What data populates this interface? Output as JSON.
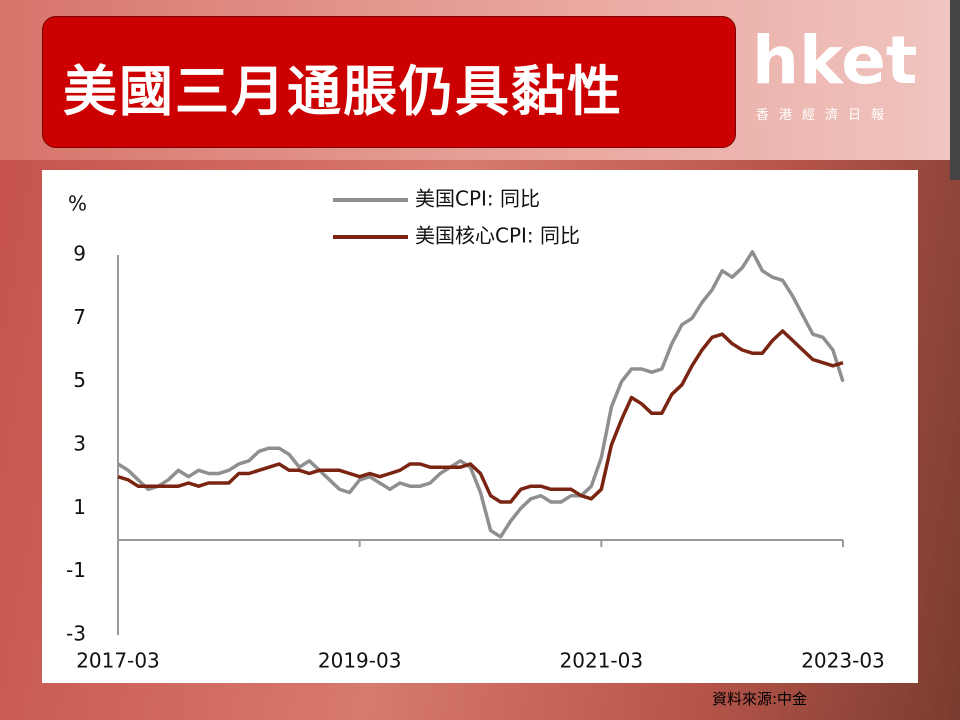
{
  "header": {
    "title": "美國三月通脹仍具黏性"
  },
  "logo": {
    "name": "hket",
    "subtitle": "香港經濟日報"
  },
  "source": "資料來源:中金",
  "chart_data": {
    "type": "line",
    "y_label": "%",
    "categories": [
      "2017-03",
      null,
      null,
      null,
      null,
      null,
      null,
      null,
      null,
      null,
      null,
      null,
      null,
      null,
      null,
      null,
      null,
      null,
      null,
      null,
      null,
      null,
      null,
      null,
      "2019-03",
      null,
      null,
      null,
      null,
      null,
      null,
      null,
      null,
      null,
      null,
      null,
      null,
      null,
      null,
      null,
      null,
      null,
      null,
      null,
      null,
      null,
      null,
      null,
      "2021-03",
      null,
      null,
      null,
      null,
      null,
      null,
      null,
      null,
      null,
      null,
      null,
      null,
      null,
      null,
      null,
      null,
      null,
      null,
      null,
      null,
      null,
      null,
      null,
      "2023-03"
    ],
    "series": [
      {
        "name": "美国CPI: 同比",
        "color": "#8f8f8f",
        "values": [
          2.4,
          2.2,
          1.9,
          1.6,
          1.7,
          1.9,
          2.2,
          2.0,
          2.2,
          2.1,
          2.1,
          2.2,
          2.4,
          2.5,
          2.8,
          2.9,
          2.9,
          2.7,
          2.3,
          2.5,
          2.2,
          1.9,
          1.6,
          1.5,
          1.9,
          2.0,
          1.8,
          1.6,
          1.8,
          1.7,
          1.7,
          1.8,
          2.1,
          2.3,
          2.5,
          2.3,
          1.5,
          0.3,
          0.1,
          0.6,
          1.0,
          1.3,
          1.4,
          1.2,
          1.2,
          1.4,
          1.4,
          1.7,
          2.6,
          4.2,
          5.0,
          5.4,
          5.4,
          5.3,
          5.4,
          6.2,
          6.8,
          7.0,
          7.5,
          7.9,
          8.5,
          8.3,
          8.6,
          9.1,
          8.5,
          8.3,
          8.2,
          7.7,
          7.1,
          6.5,
          6.4,
          6.0,
          5.0
        ]
      },
      {
        "name": "美国核心CPI: 同比",
        "color": "#7a2512",
        "values": [
          2.0,
          1.9,
          1.7,
          1.7,
          1.7,
          1.7,
          1.7,
          1.8,
          1.7,
          1.8,
          1.8,
          1.8,
          2.1,
          2.1,
          2.2,
          2.3,
          2.4,
          2.2,
          2.2,
          2.1,
          2.2,
          2.2,
          2.2,
          2.1,
          2.0,
          2.1,
          2.0,
          2.1,
          2.2,
          2.4,
          2.4,
          2.3,
          2.3,
          2.3,
          2.3,
          2.4,
          2.1,
          1.4,
          1.2,
          1.2,
          1.6,
          1.7,
          1.7,
          1.6,
          1.6,
          1.6,
          1.4,
          1.3,
          1.6,
          3.0,
          3.8,
          4.5,
          4.3,
          4.0,
          4.0,
          4.6,
          4.9,
          5.5,
          6.0,
          6.4,
          6.5,
          6.2,
          6.0,
          5.9,
          5.9,
          6.3,
          6.6,
          6.3,
          6.0,
          5.7,
          5.6,
          5.5,
          5.6
        ]
      }
    ],
    "ylim": [
      -3,
      9
    ],
    "yticks": [
      9,
      7,
      5,
      3,
      1,
      -1,
      -3
    ],
    "legend": "upper center",
    "grid": false
  }
}
